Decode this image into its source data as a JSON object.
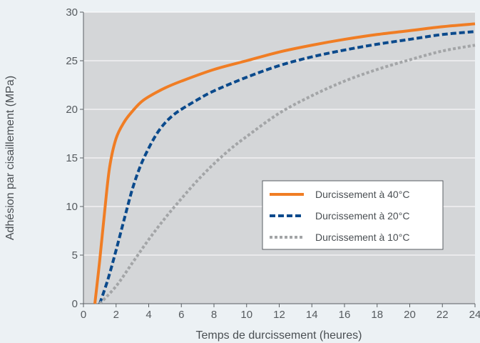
{
  "chart_data": {
    "type": "line",
    "xlabel": "Temps de durcissement (heures)",
    "ylabel": "Adhésion par cisaillement (MPa)",
    "xlim": [
      0,
      24
    ],
    "ylim": [
      0,
      30
    ],
    "xticks": [
      0,
      2,
      4,
      6,
      8,
      10,
      12,
      14,
      16,
      18,
      20,
      22,
      24
    ],
    "yticks": [
      0,
      5,
      10,
      15,
      20,
      25,
      30
    ],
    "grid": "horizontal",
    "legend_position": "center-right",
    "plot_background": "#d4d6d8",
    "series": [
      {
        "name": "Durcissement à 40°C",
        "color": "#f07d24",
        "style": "solid",
        "x": [
          0.7,
          1.0,
          1.3,
          1.6,
          2.0,
          2.5,
          3.0,
          3.5,
          4.0,
          5.0,
          6.0,
          8.0,
          10.0,
          12.0,
          14.0,
          16.0,
          18.0,
          20.0,
          22.0,
          24.0
        ],
        "y": [
          0,
          4.5,
          9.5,
          14.0,
          17.0,
          18.7,
          19.8,
          20.7,
          21.3,
          22.2,
          22.9,
          24.1,
          25.0,
          25.9,
          26.6,
          27.2,
          27.7,
          28.1,
          28.5,
          28.8
        ]
      },
      {
        "name": "Durcissement à 20°C",
        "color": "#0b4a8c",
        "style": "dashed",
        "x": [
          1.0,
          1.5,
          2.0,
          2.5,
          3.0,
          3.5,
          4.0,
          4.5,
          5.0,
          5.5,
          6.0,
          7.0,
          8.0,
          10.0,
          12.0,
          14.0,
          16.0,
          18.0,
          20.0,
          22.0,
          24.0
        ],
        "y": [
          0,
          2.5,
          5.5,
          8.7,
          11.8,
          14.2,
          16.0,
          17.5,
          18.6,
          19.4,
          20.0,
          21.0,
          21.9,
          23.3,
          24.5,
          25.4,
          26.1,
          26.7,
          27.2,
          27.7,
          28.0
        ]
      },
      {
        "name": "Durcissement à 10°C",
        "color": "#a3a5a7",
        "style": "dotted",
        "x": [
          1.0,
          2.0,
          3.0,
          4.0,
          5.0,
          6.0,
          7.0,
          8.0,
          9.0,
          10.0,
          12.0,
          14.0,
          16.0,
          18.0,
          20.0,
          22.0,
          24.0
        ],
        "y": [
          0,
          1.8,
          4.2,
          6.6,
          8.8,
          10.8,
          12.7,
          14.4,
          15.9,
          17.2,
          19.6,
          21.4,
          22.9,
          24.1,
          25.1,
          26.0,
          26.6
        ]
      }
    ]
  }
}
